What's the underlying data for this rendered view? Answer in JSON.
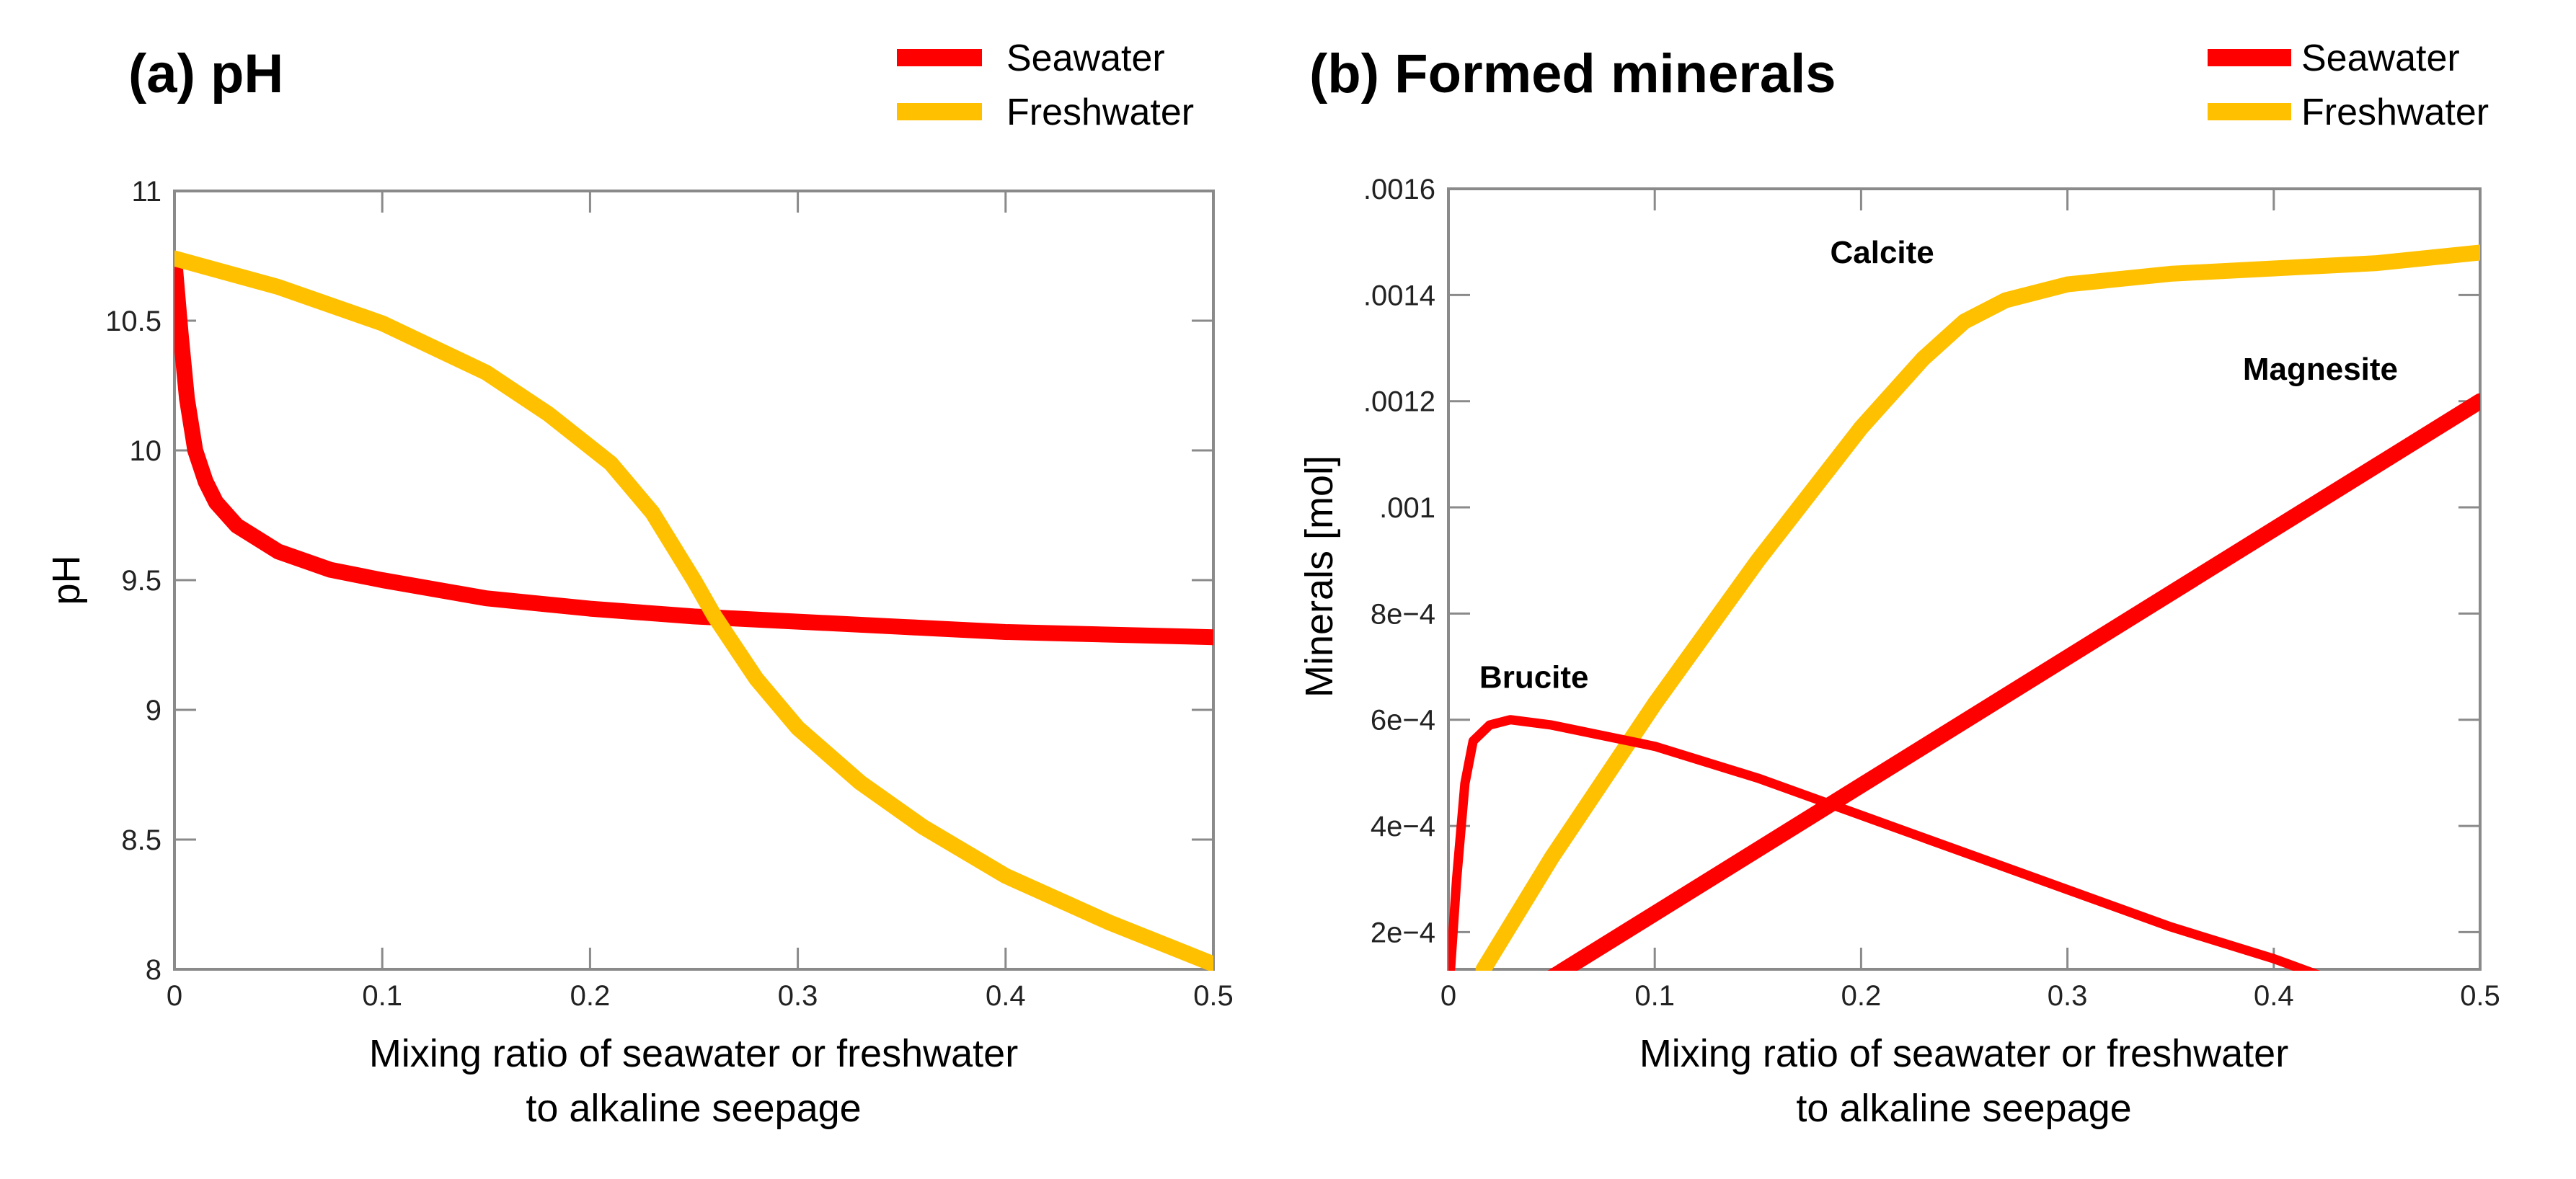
{
  "chart_data": [
    {
      "type": "line",
      "title": "(a) pH",
      "xlabel": [
        "Mixing ratio of seawater or freshwater",
        "to alkaline seepage"
      ],
      "ylabel": "pH",
      "xlim": [
        0,
        0.5
      ],
      "ylim": [
        8,
        11
      ],
      "xticks": [
        "0",
        "0.1",
        "0.2",
        "0.3",
        "0.4",
        "0.5"
      ],
      "xtick_values": [
        0,
        0.1,
        0.2,
        0.3,
        0.4,
        0.5
      ],
      "yticks": [
        "8",
        "8.5",
        "9",
        "9.5",
        "10",
        "10.5",
        "11"
      ],
      "ytick_values": [
        8,
        8.5,
        9,
        9.5,
        10,
        10.5,
        11
      ],
      "legend": [
        {
          "label": "Seawater",
          "color": "#ff0000"
        },
        {
          "label": "Freshwater",
          "color": "#ffc000"
        }
      ],
      "legend_position": "top-right-outside",
      "series": [
        {
          "name": "Seawater",
          "color": "#ff0000",
          "width": "thick",
          "x": [
            0,
            0.003,
            0.006,
            0.01,
            0.015,
            0.02,
            0.03,
            0.05,
            0.075,
            0.1,
            0.15,
            0.2,
            0.25,
            0.3,
            0.35,
            0.4,
            0.45,
            0.5
          ],
          "y": [
            10.73,
            10.45,
            10.2,
            10.0,
            9.88,
            9.8,
            9.71,
            9.61,
            9.54,
            9.5,
            9.43,
            9.39,
            9.36,
            9.34,
            9.32,
            9.3,
            9.29,
            9.28
          ]
        },
        {
          "name": "Freshwater",
          "color": "#ffc000",
          "width": "thick",
          "x": [
            0,
            0.05,
            0.1,
            0.15,
            0.18,
            0.21,
            0.23,
            0.25,
            0.26,
            0.28,
            0.3,
            0.33,
            0.36,
            0.4,
            0.45,
            0.5
          ],
          "y": [
            10.74,
            10.63,
            10.49,
            10.3,
            10.14,
            9.95,
            9.76,
            9.5,
            9.36,
            9.12,
            8.93,
            8.72,
            8.55,
            8.36,
            8.18,
            8.02
          ]
        }
      ]
    },
    {
      "type": "line",
      "title": "(b) Formed minerals",
      "xlabel": [
        "Mixing ratio of seawater or freshwater",
        "to alkaline seepage"
      ],
      "ylabel": "Minerals [mol]",
      "xlim": [
        0,
        0.5
      ],
      "ylim": [
        0.00013,
        0.0016
      ],
      "xticks": [
        "0",
        "0.1",
        "0.2",
        "0.3",
        "0.4",
        "0.5"
      ],
      "xtick_values": [
        0,
        0.1,
        0.2,
        0.3,
        0.4,
        0.5
      ],
      "yticks": [
        "2e−4",
        "4e−4",
        "6e−4",
        "8e−4",
        ".001",
        ".0012",
        ".0014",
        ".0016"
      ],
      "ytick_values": [
        0.0002,
        0.0004,
        0.0006,
        0.0008,
        0.001,
        0.0012,
        0.0014,
        0.0016
      ],
      "legend": [
        {
          "label": "Seawater",
          "color": "#ff0000"
        },
        {
          "label": "Freshwater",
          "color": "#ffc000"
        }
      ],
      "legend_position": "top-right-outside",
      "annotations": [
        {
          "text": "Brucite",
          "x": 0.015,
          "y": 0.00066
        },
        {
          "text": "Calcite",
          "x": 0.185,
          "y": 0.00146
        },
        {
          "text": "Magnesite",
          "x": 0.385,
          "y": 0.00124
        }
      ],
      "series": [
        {
          "name": "Calcite (Freshwater)",
          "color": "#ffc000",
          "width": "thick",
          "x": [
            0.017,
            0.05,
            0.1,
            0.15,
            0.2,
            0.23,
            0.25,
            0.27,
            0.3,
            0.35,
            0.4,
            0.45,
            0.5
          ],
          "y": [
            0.00013,
            0.00034,
            0.00063,
            0.0009,
            0.00115,
            0.00128,
            0.00135,
            0.00139,
            0.00142,
            0.00144,
            0.00145,
            0.00146,
            0.00148
          ]
        },
        {
          "name": "Brucite (Seawater)",
          "color": "#ff0000",
          "width": "thin",
          "x": [
            0.001,
            0.004,
            0.008,
            0.012,
            0.02,
            0.03,
            0.05,
            0.1,
            0.15,
            0.2,
            0.25,
            0.3,
            0.35,
            0.4,
            0.435
          ],
          "y": [
            0.00013,
            0.0003,
            0.00048,
            0.00056,
            0.00059,
            0.0006,
            0.00059,
            0.00055,
            0.00049,
            0.00042,
            0.00035,
            0.00028,
            0.00021,
            0.00015,
            0.0001
          ]
        },
        {
          "name": "Magnesite (Seawater)",
          "color": "#ff0000",
          "width": "thick",
          "x": [
            0.044,
            0.5
          ],
          "y": [
            0.0001,
            0.0012
          ]
        }
      ]
    }
  ]
}
